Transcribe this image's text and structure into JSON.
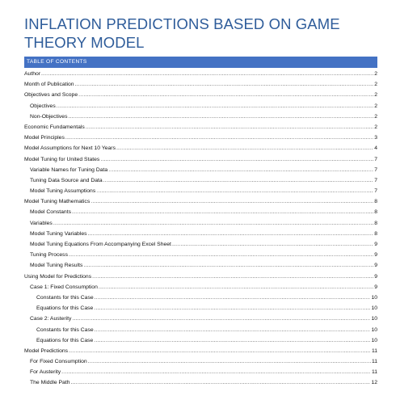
{
  "document": {
    "title_line1": "INFLATION PREDICTIONS BASED ON GAME",
    "title_line2": "THEORY MODEL",
    "accent_color": "#4472c4",
    "title_color": "#2e5c9a"
  },
  "toc": {
    "header": "TABLE OF CONTENTS",
    "entries": [
      {
        "label": "Author",
        "page": "2",
        "level": 1
      },
      {
        "label": "Month of Publication",
        "page": "2",
        "level": 1
      },
      {
        "label": "Objectives and Scope",
        "page": "2",
        "level": 1
      },
      {
        "label": "Objectives",
        "page": "2",
        "level": 2
      },
      {
        "label": "Non-Objectives",
        "page": "2",
        "level": 2
      },
      {
        "label": "Economic Fundamentals",
        "page": "2",
        "level": 1
      },
      {
        "label": "Model Principles",
        "page": "3",
        "level": 1
      },
      {
        "label": "Model Assumptions for Next 10 Years",
        "page": "4",
        "level": 1
      },
      {
        "label": "Model Tuning for United States",
        "page": "7",
        "level": 1
      },
      {
        "label": "Variable Names for Tuning Data",
        "page": "7",
        "level": 2
      },
      {
        "label": "Tuning Data Source and Data",
        "page": "7",
        "level": 2
      },
      {
        "label": "Model Tuning Assumptions",
        "page": "7",
        "level": 2
      },
      {
        "label": "Model Tuning Mathematics",
        "page": "8",
        "level": 1
      },
      {
        "label": "Model Constants",
        "page": "8",
        "level": 2
      },
      {
        "label": "Variables",
        "page": "8",
        "level": 2
      },
      {
        "label": "Model Tuning Variables",
        "page": "8",
        "level": 2
      },
      {
        "label": "Model Tuning Equations From Accompanying Excel Sheet",
        "page": "9",
        "level": 2
      },
      {
        "label": "Tuning Process",
        "page": "9",
        "level": 2
      },
      {
        "label": "Model Tuning Results",
        "page": "9",
        "level": 2
      },
      {
        "label": "Using Model for Predictions",
        "page": "9",
        "level": 1
      },
      {
        "label": "Case 1: Fixed Consumption",
        "page": "9",
        "level": 2
      },
      {
        "label": "Constants for this Case",
        "page": "10",
        "level": 3
      },
      {
        "label": "Equations for this Case",
        "page": "10",
        "level": 3
      },
      {
        "label": "Case 2: Austerity",
        "page": "10",
        "level": 2
      },
      {
        "label": "Constants for this Case",
        "page": "10",
        "level": 3
      },
      {
        "label": "Equations for this Case",
        "page": "10",
        "level": 3
      },
      {
        "label": "Model Predictions",
        "page": "11",
        "level": 1
      },
      {
        "label": "For Fixed Consumption",
        "page": "11",
        "level": 2
      },
      {
        "label": "For Austerity",
        "page": "11",
        "level": 2
      },
      {
        "label": "The Middle Path",
        "page": "12",
        "level": 2
      }
    ]
  }
}
